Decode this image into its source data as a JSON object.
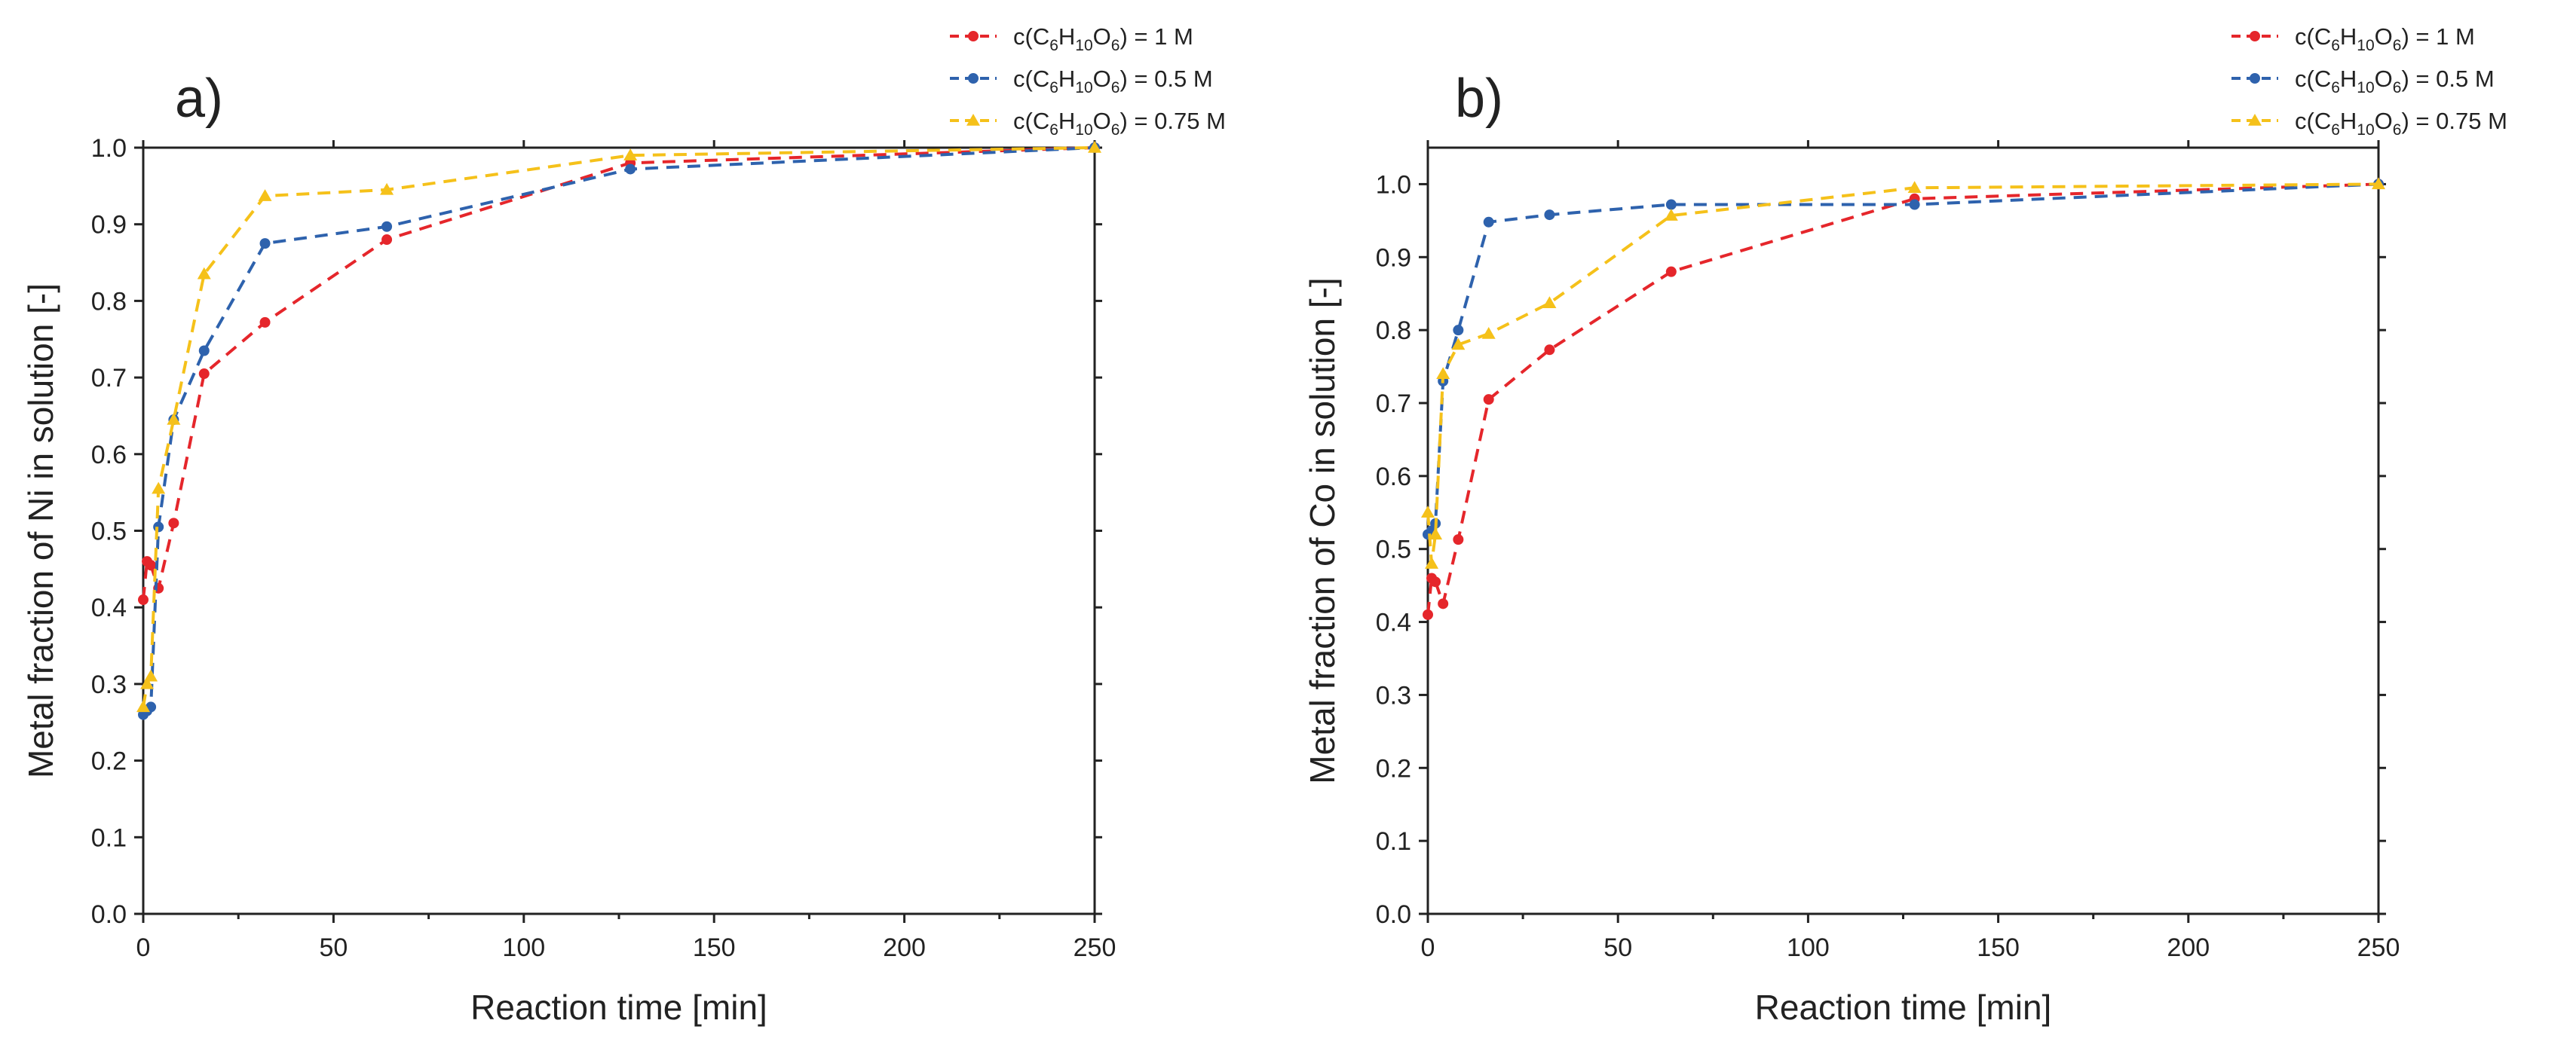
{
  "chart_data": [
    {
      "type": "line",
      "panel": "a)",
      "xlabel": "Reaction time [min]",
      "ylabel": "Metal fraction of Ni in solution [-]",
      "xlim": [
        0,
        250
      ],
      "ylim": [
        0,
        1.0
      ],
      "xticks": [
        "0",
        "50",
        "100",
        "150",
        "200",
        "250"
      ],
      "yticks": [
        "0.0",
        "0.1",
        "0.2",
        "0.3",
        "0.4",
        "0.5",
        "0.6",
        "0.7",
        "0.8",
        "0.9",
        "1.0"
      ],
      "grid": false,
      "legend_position": "top-right, above plot",
      "series": [
        {
          "name": "c(C6H10O6) = 1 M",
          "label": {
            "pre": "c(C",
            "s1": "6",
            "m1": "H",
            "s2": "10",
            "m2": "O",
            "s3": "6",
            "post": ") = 1 M"
          },
          "color": "#e5262b",
          "marker": "circle",
          "x": [
            0,
            1,
            2,
            4,
            8,
            16,
            32,
            64,
            128,
            250
          ],
          "y": [
            0.41,
            0.46,
            0.455,
            0.425,
            0.51,
            0.705,
            0.772,
            0.88,
            0.98,
            1.0
          ]
        },
        {
          "name": "c(C6H10O6) = 0.5 M",
          "label": {
            "pre": "c(C",
            "s1": "6",
            "m1": "H",
            "s2": "10",
            "m2": "O",
            "s3": "6",
            "post": ") = 0.5 M"
          },
          "color": "#2e62ad",
          "marker": "circle",
          "x": [
            0,
            1,
            2,
            4,
            8,
            16,
            32,
            64,
            128,
            250
          ],
          "y": [
            0.26,
            0.265,
            0.27,
            0.505,
            0.645,
            0.735,
            0.875,
            0.897,
            0.972,
            1.0
          ]
        },
        {
          "name": "c(C6H10O6) = 0.75 M",
          "label": {
            "pre": "c(C",
            "s1": "6",
            "m1": "H",
            "s2": "10",
            "m2": "O",
            "s3": "6",
            "post": ") = 0.75 M"
          },
          "color": "#f5c11a",
          "marker": "triangle",
          "x": [
            0,
            1,
            2,
            4,
            8,
            16,
            32,
            64,
            128,
            250
          ],
          "y": [
            0.27,
            0.3,
            0.31,
            0.555,
            0.645,
            0.835,
            0.937,
            0.945,
            0.99,
            1.0
          ]
        }
      ]
    },
    {
      "type": "line",
      "panel": "b)",
      "xlabel": "Reaction time [min]",
      "ylabel": "Metal fraction of Co in solution [-]",
      "xlim": [
        0,
        250
      ],
      "ylim": [
        0,
        1.05
      ],
      "xticks": [
        "0",
        "50",
        "100",
        "150",
        "200",
        "250"
      ],
      "yticks": [
        "0.0",
        "0.1",
        "0.2",
        "0.3",
        "0.4",
        "0.5",
        "0.6",
        "0.7",
        "0.8",
        "0.9",
        "1.0"
      ],
      "grid": false,
      "legend_position": "top-right, above plot",
      "series": [
        {
          "name": "c(C6H10O6) = 1 M",
          "label": {
            "pre": "c(C",
            "s1": "6",
            "m1": "H",
            "s2": "10",
            "m2": "O",
            "s3": "6",
            "post": ") = 1 M"
          },
          "color": "#e5262b",
          "marker": "circle",
          "x": [
            0,
            1,
            2,
            4,
            8,
            16,
            32,
            64,
            128,
            250
          ],
          "y": [
            0.41,
            0.46,
            0.455,
            0.425,
            0.513,
            0.705,
            0.773,
            0.88,
            0.98,
            1.0
          ]
        },
        {
          "name": "c(C6H10O6) = 0.5 M",
          "label": {
            "pre": "c(C",
            "s1": "6",
            "m1": "H",
            "s2": "10",
            "m2": "O",
            "s3": "6",
            "post": ") = 0.5 M"
          },
          "color": "#2e62ad",
          "marker": "circle",
          "x": [
            0,
            1,
            2,
            4,
            8,
            16,
            32,
            64,
            128,
            250
          ],
          "y": [
            0.52,
            0.525,
            0.535,
            0.73,
            0.8,
            0.948,
            0.958,
            0.972,
            0.972,
            1.0
          ]
        },
        {
          "name": "c(C6H10O6) = 0.75 M",
          "label": {
            "pre": "c(C",
            "s1": "6",
            "m1": "H",
            "s2": "10",
            "m2": "O",
            "s3": "6",
            "post": ") = 0.75 M"
          },
          "color": "#f5c11a",
          "marker": "triangle",
          "x": [
            0,
            1,
            2,
            4,
            8,
            16,
            32,
            64,
            128,
            250
          ],
          "y": [
            0.55,
            0.48,
            0.52,
            0.74,
            0.78,
            0.795,
            0.837,
            0.957,
            0.995,
            1.0
          ]
        }
      ]
    }
  ]
}
